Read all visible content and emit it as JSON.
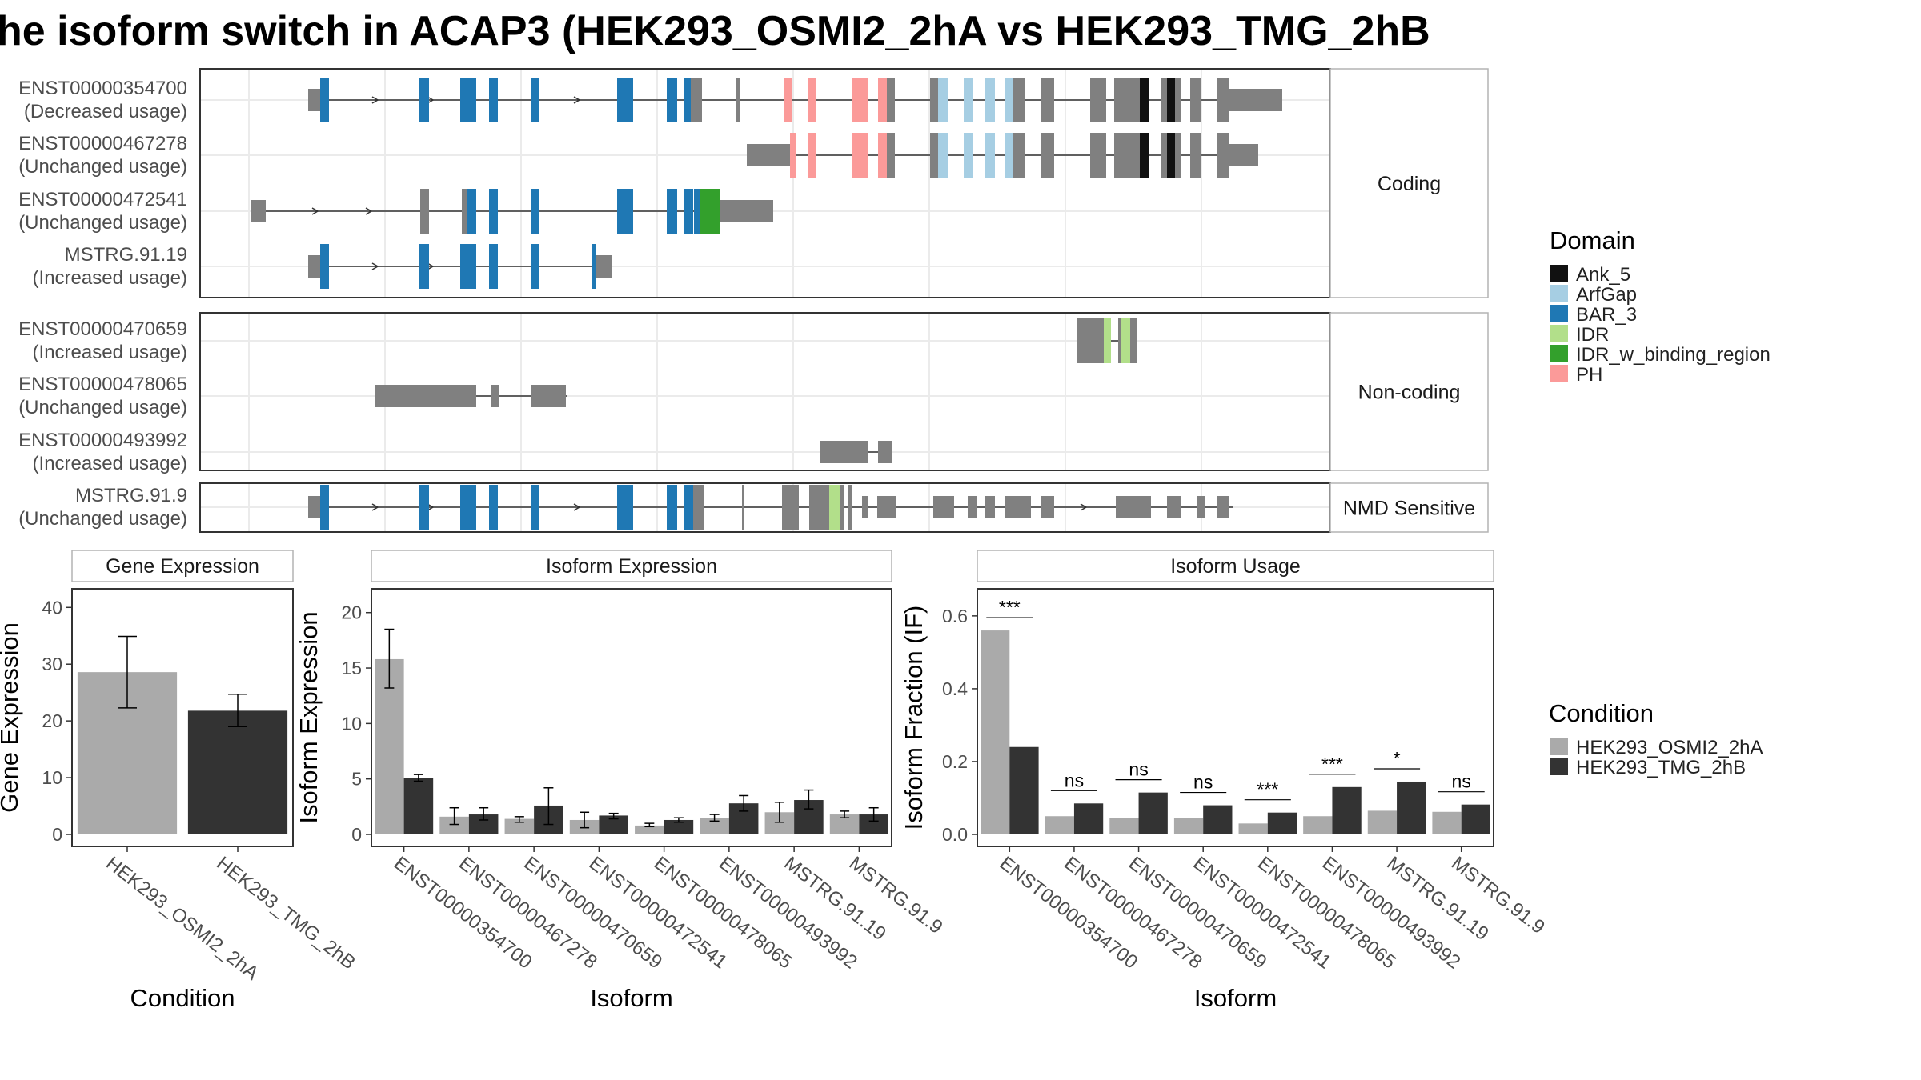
{
  "title": "he isoform switch in ACAP3 (HEK293_OSMI2_2hA vs HEK293_TMG_2hB",
  "colors": {
    "exon": "#808080",
    "panel_border": "#333333",
    "grid": "#ebebeb",
    "cond_a": "#aaaaaa",
    "cond_b": "#333333"
  },
  "domain_legend": {
    "title": "Domain",
    "items": [
      {
        "label": "Ank_5",
        "color": "#111111"
      },
      {
        "label": "ArfGap",
        "color": "#a6cee3"
      },
      {
        "label": "BAR_3",
        "color": "#1f78b4"
      },
      {
        "label": "IDR",
        "color": "#b2df8a"
      },
      {
        "label": "IDR_w_binding_region",
        "color": "#33a02c"
      },
      {
        "label": "PH",
        "color": "#fb9a99"
      }
    ]
  },
  "condition_legend": {
    "title": "Condition",
    "items": [
      {
        "label": "HEK293_OSMI2_2hA",
        "color": "#aaaaaa"
      },
      {
        "label": "HEK293_TMG_2hB",
        "color": "#333333"
      }
    ]
  },
  "structure": {
    "groups": [
      {
        "label": "Coding",
        "isoforms": [
          {
            "id": "ENST00000354700",
            "usage": "(Decreased usage)"
          },
          {
            "id": "ENST00000467278",
            "usage": "(Unchanged usage)"
          },
          {
            "id": "ENST00000472541",
            "usage": "(Unchanged usage)"
          },
          {
            "id": "MSTRG.91.19",
            "usage": "(Increased usage)"
          }
        ]
      },
      {
        "label": "Non-coding",
        "isoforms": [
          {
            "id": "ENST00000470659",
            "usage": "(Increased usage)"
          },
          {
            "id": "ENST00000478065",
            "usage": "(Unchanged usage)"
          },
          {
            "id": "ENST00000493992",
            "usage": "(Increased usage)"
          }
        ]
      },
      {
        "label": "NMD Sensitive",
        "isoforms": [
          {
            "id": "MSTRG.91.9",
            "usage": "(Unchanged usage)"
          }
        ]
      }
    ]
  },
  "chart_data": [
    {
      "type": "bar",
      "title": "Gene Expression",
      "xlabel": "Condition",
      "ylabel": "Gene Expression",
      "categories": [
        "HEK293_OSMI2_2hA",
        "HEK293_TMG_2hB"
      ],
      "values": [
        28.6,
        21.8
      ],
      "errors": [
        [
          22.3,
          34.9
        ],
        [
          19.0,
          24.7
        ]
      ],
      "ylim": [
        0,
        43
      ],
      "yticks": [
        "0",
        "10",
        "20",
        "30",
        "40"
      ]
    },
    {
      "type": "bar",
      "title": "Isoform Expression",
      "xlabel": "Isoform",
      "ylabel": "Isoform Expression",
      "categories": [
        "ENST00000354700",
        "ENST00000467278",
        "ENST00000470659",
        "ENST00000472541",
        "ENST00000478065",
        "ENST00000493992",
        "MSTRG.91.19",
        "MSTRG.91.9"
      ],
      "series": [
        {
          "name": "HEK293_OSMI2_2hA",
          "values": [
            15.8,
            1.6,
            1.4,
            1.3,
            0.8,
            1.5,
            2.0,
            1.8
          ],
          "errors": [
            [
              13.2,
              18.5
            ],
            [
              0.9,
              2.4
            ],
            [
              1.1,
              1.6
            ],
            [
              0.6,
              2.0
            ],
            [
              0.7,
              1.0
            ],
            [
              1.2,
              1.8
            ],
            [
              1.1,
              2.9
            ],
            [
              1.5,
              2.1
            ]
          ]
        },
        {
          "name": "HEK293_TMG_2hB",
          "values": [
            5.1,
            1.8,
            2.6,
            1.7,
            1.3,
            2.8,
            3.1,
            1.8
          ],
          "errors": [
            [
              4.8,
              5.4
            ],
            [
              1.3,
              2.4
            ],
            [
              0.9,
              4.2
            ],
            [
              1.4,
              1.9
            ],
            [
              1.1,
              1.5
            ],
            [
              2.1,
              3.5
            ],
            [
              2.3,
              4.0
            ],
            [
              1.2,
              2.4
            ]
          ]
        }
      ],
      "ylim": [
        0,
        22
      ],
      "yticks": [
        "0",
        "5",
        "10",
        "15",
        "20"
      ]
    },
    {
      "type": "bar",
      "title": "Isoform Usage",
      "xlabel": "Isoform",
      "ylabel": "Isoform Fraction (IF)",
      "categories": [
        "ENST00000354700",
        "ENST00000467278",
        "ENST00000470659",
        "ENST00000472541",
        "ENST00000478065",
        "ENST00000493992",
        "MSTRG.91.19",
        "MSTRG.91.9"
      ],
      "series": [
        {
          "name": "HEK293_OSMI2_2hA",
          "values": [
            0.56,
            0.05,
            0.045,
            0.045,
            0.03,
            0.05,
            0.065,
            0.062
          ]
        },
        {
          "name": "HEK293_TMG_2hB",
          "values": [
            0.24,
            0.085,
            0.115,
            0.08,
            0.06,
            0.13,
            0.145,
            0.082
          ]
        }
      ],
      "significance": [
        "***",
        "ns",
        "ns",
        "ns",
        "***",
        "***",
        "*",
        "ns"
      ],
      "ylim": [
        0,
        0.67
      ],
      "yticks": [
        "0.0",
        "0.2",
        "0.4",
        "0.6"
      ]
    }
  ]
}
